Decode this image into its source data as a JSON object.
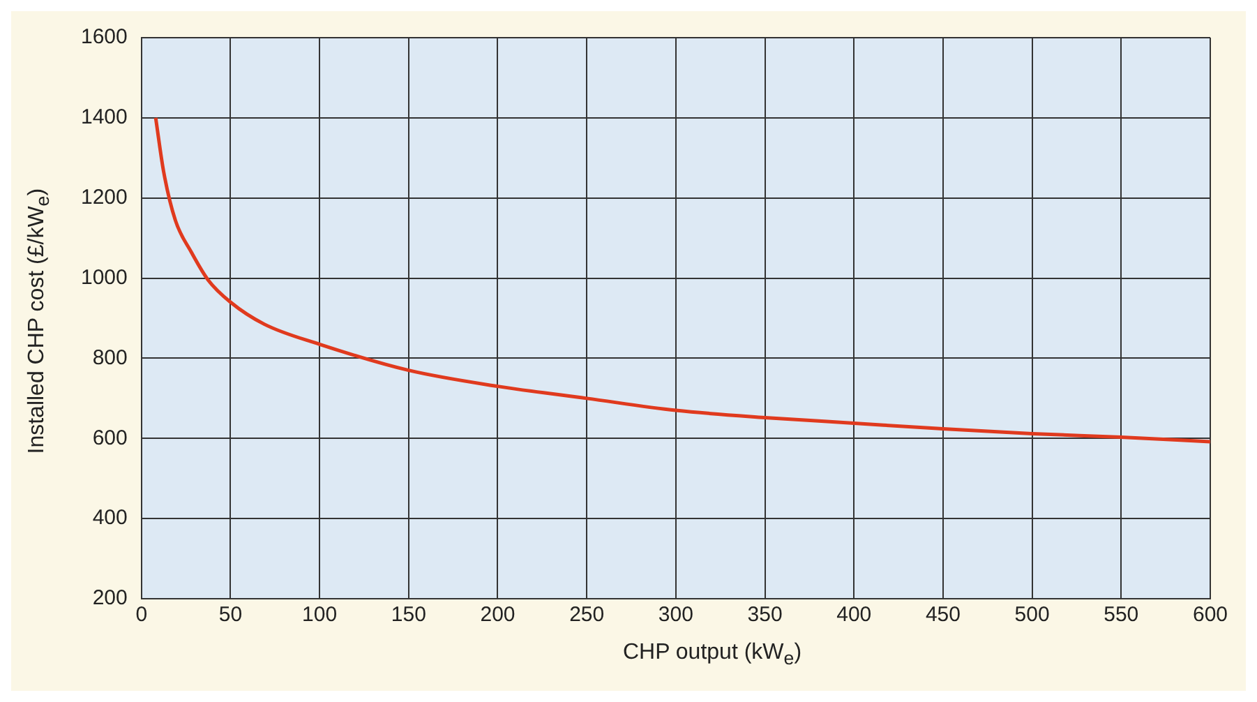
{
  "chart_data": {
    "type": "line",
    "xlabel": "CHP output (kW$_{e}$)",
    "ylabel": "Installed CHP cost (£/kW$_{e}$)",
    "x": [
      8,
      12.5,
      19,
      28,
      37.5,
      50,
      69,
      100,
      150,
      200,
      250,
      300,
      350,
      400,
      450,
      500,
      550,
      600
    ],
    "series": [
      {
        "color": "#e03a1e",
        "values": [
          1400,
          1265,
          1145,
          1065,
          995,
          940,
          885,
          835,
          770,
          730,
          700,
          670,
          652,
          638,
          624,
          612,
          603,
          592
        ]
      }
    ],
    "xlim": [
      0,
      600
    ],
    "xticks": [
      0,
      50,
      100,
      150,
      200,
      250,
      300,
      350,
      400,
      450,
      500,
      550,
      600
    ],
    "ylim": [
      200,
      1600
    ],
    "yticks": [
      200,
      400,
      600,
      800,
      1000,
      1200,
      1400,
      1600
    ],
    "grid": true,
    "legend": false,
    "marker": "none",
    "line_style": "solid"
  }
}
